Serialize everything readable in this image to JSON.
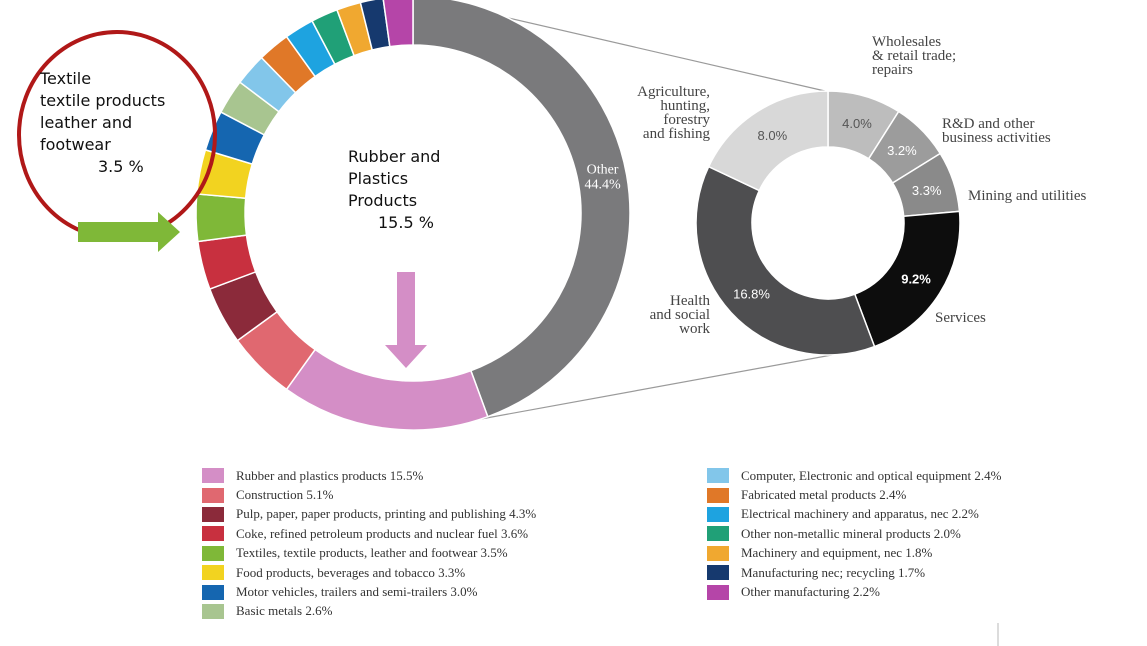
{
  "chart_data": [
    {
      "type": "pie",
      "donut": true,
      "legend_placement": "bottom",
      "slices": [
        {
          "label": "Other",
          "display": "Other\n44.4%",
          "value": 44.4,
          "color": "#7a7a7c"
        },
        {
          "label": "Rubber and plastics products",
          "value": 15.5,
          "color": "#d48ec6"
        },
        {
          "label": "Construction",
          "value": 5.1,
          "color": "#e06870"
        },
        {
          "label": "Pulp, paper, paper products, printing and publishing",
          "value": 4.3,
          "color": "#8b2a3a"
        },
        {
          "label": "Coke, refined petroleum products and nuclear fuel",
          "value": 3.6,
          "color": "#c8303f"
        },
        {
          "label": "Textiles, textile products, leather and footwear",
          "value": 3.5,
          "color": "#7fb838"
        },
        {
          "label": "Food products, beverages and tobacco",
          "value": 3.3,
          "color": "#f2d320"
        },
        {
          "label": "Motor vehicles, trailers and semi-trailers",
          "value": 3.0,
          "color": "#1566b0"
        },
        {
          "label": "Basic metals",
          "value": 2.6,
          "color": "#a8c590"
        },
        {
          "label": "Computer, Electronic and optical equipment",
          "value": 2.4,
          "color": "#82c6ea"
        },
        {
          "label": "Fabricated metal products",
          "value": 2.4,
          "color": "#e07828"
        },
        {
          "label": "Electrical machinery and apparatus, nec",
          "value": 2.2,
          "color": "#1ea3e0"
        },
        {
          "label": "Other non-metallic mineral products",
          "value": 2.0,
          "color": "#20a077"
        },
        {
          "label": "Machinery and equipment, nec",
          "value": 1.8,
          "color": "#f0a830"
        },
        {
          "label": "Manufacturing nec; recycling",
          "value": 1.7,
          "color": "#16396e"
        },
        {
          "label": "Other manufacturing",
          "value": 2.2,
          "color": "#b545a8"
        }
      ]
    },
    {
      "type": "pie",
      "donut": true,
      "slices": [
        {
          "label": "Wholesales\n& retail trade;\nrepairs",
          "value": 4.0,
          "display": "4.0%",
          "color": "#bdbdbd"
        },
        {
          "label": "R&D and other\nbusiness activities",
          "value": 3.2,
          "display": "3.2%",
          "color": "#9c9c9c"
        },
        {
          "label": "Mining and utilities",
          "value": 3.3,
          "display": "3.3%",
          "color": "#8a8a8a"
        },
        {
          "label": "Services",
          "value": 9.2,
          "display": "9.2%",
          "color": "#0d0d0d"
        },
        {
          "label": "Health\nand social\nwork",
          "value": 16.8,
          "display": "16.8%",
          "color": "#4e4e50"
        },
        {
          "label": "Agriculture,\nhunting,\nforestry\nand fishing",
          "value": 8.0,
          "display": "8.0%",
          "color": "#d8d8d8"
        }
      ]
    }
  ],
  "callouts": {
    "main": {
      "lines": [
        "Rubber and",
        "Plastics",
        "Products"
      ],
      "pct": "15.5 %"
    },
    "textile": {
      "lines": [
        "Textile",
        "textile products",
        "leather and",
        "footwear"
      ],
      "pct": "3.5 %"
    }
  },
  "legend": {
    "left": [
      {
        "text": "Rubber and plastics products 15.5%",
        "color": "#d48ec6"
      },
      {
        "text": "Construction 5.1%",
        "color": "#e06870"
      },
      {
        "text": "Pulp, paper, paper products, printing and publishing 4.3%",
        "color": "#8b2a3a"
      },
      {
        "text": "Coke, refined petroleum products and nuclear fuel 3.6%",
        "color": "#c8303f"
      },
      {
        "text": "Textiles, textile products, leather and footwear 3.5%",
        "color": "#7fb838"
      },
      {
        "text": "Food products, beverages and tobacco 3.3%",
        "color": "#f2d320"
      },
      {
        "text": "Motor vehicles, trailers and semi-trailers 3.0%",
        "color": "#1566b0"
      },
      {
        "text": "Basic metals 2.6%",
        "color": "#a8c590"
      }
    ],
    "right": [
      {
        "text": "Computer, Electronic and optical equipment 2.4%",
        "color": "#82c6ea"
      },
      {
        "text": "Fabricated metal products 2.4%",
        "color": "#e07828"
      },
      {
        "text": "Electrical machinery and apparatus, nec 2.2%",
        "color": "#1ea3e0"
      },
      {
        "text": "Other non-metallic mineral products 2.0%",
        "color": "#20a077"
      },
      {
        "text": "Machinery and equipment, nec 1.8%",
        "color": "#f0a830"
      },
      {
        "text": "Manufacturing nec; recycling 1.7%",
        "color": "#16396e"
      },
      {
        "text": "Other manufacturing 2.2%",
        "color": "#b545a8"
      }
    ]
  },
  "annotation_colors": {
    "arrow_main": "#d48ec6",
    "arrow_textile": "#7fb838",
    "highlight_circle": "#b01818"
  }
}
